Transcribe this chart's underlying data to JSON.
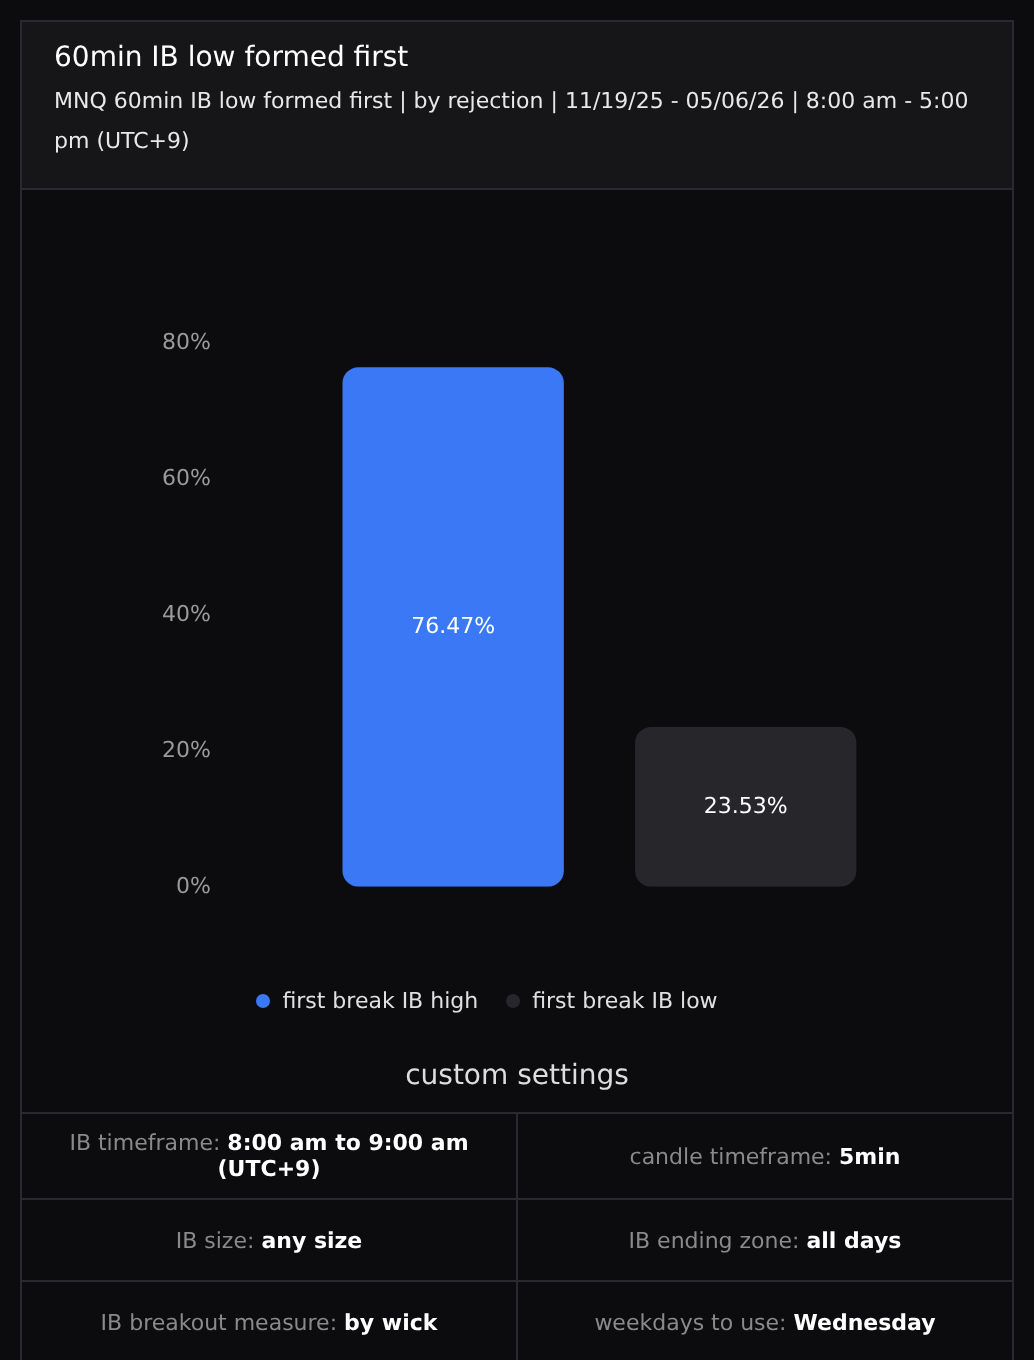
{
  "chart_data": {
    "type": "bar",
    "title": "60min IB low formed first",
    "subtitle": "MNQ 60min IB low formed first  |  by rejection  |  11/19/25 - 05/06/26  |  8:00 am - 5:00 pm (UTC+9)",
    "categories": [
      "first break IB high",
      "first break IB low"
    ],
    "values": [
      76.47,
      23.53
    ],
    "colors": [
      "#3b78f5",
      "#27272b"
    ],
    "value_labels": [
      "76.47%",
      "23.53%"
    ],
    "ylim": [
      0,
      80
    ],
    "yticks": [
      {
        "value": 0,
        "label": "0%"
      },
      {
        "value": 20,
        "label": "20%"
      },
      {
        "value": 40,
        "label": "40%"
      },
      {
        "value": 60,
        "label": "60%"
      },
      {
        "value": 80,
        "label": "80%"
      }
    ],
    "grid": false,
    "tick_labels": "y",
    "annotations": [
      "custom settings",
      "IB timeframe: 8:00 am to 9:00 am (UTC+9)",
      "candle timeframe: 5min",
      "IB size: any size",
      "IB ending zone: all days",
      "IB breakout measure: by wick",
      "weekdays to use: Wednesday"
    ]
  }
}
